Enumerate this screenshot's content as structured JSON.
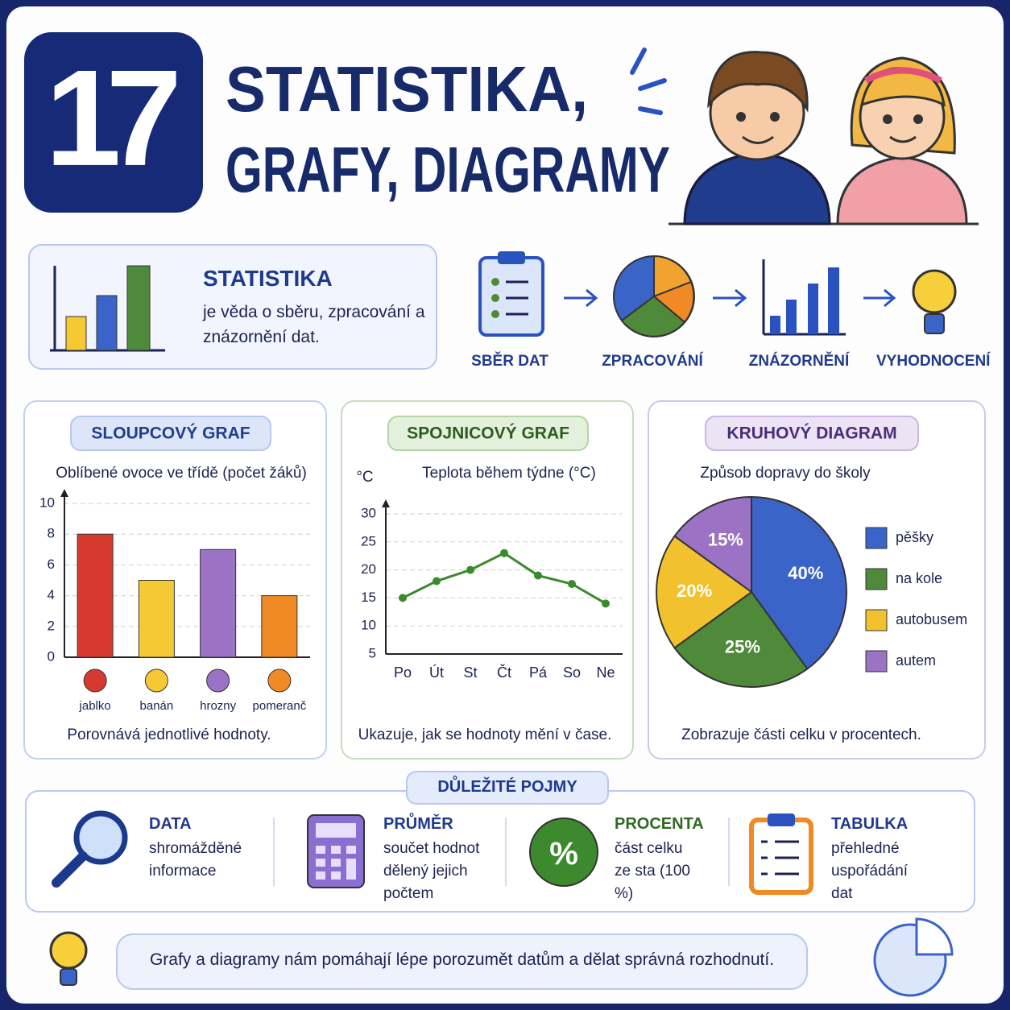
{
  "header": {
    "number": "17",
    "title_lines": [
      "STATISTIKA,",
      "GRAFY, DIAGRAMY"
    ]
  },
  "intro": {
    "title": "STATISTIKA",
    "text": "je věda o sběru, zpracování a znázornění dat."
  },
  "process": {
    "steps": [
      "SBĚR DAT",
      "ZPRACOVÁNÍ",
      "ZNÁZORNĚNÍ",
      "VYHODNOCENÍ"
    ]
  },
  "chart_data": [
    {
      "type": "bar",
      "badge": "SLOUPCOVÝ GRAF",
      "title": "Oblíbené ovoce ve třídě (počet žáků)",
      "categories": [
        "jablko",
        "banán",
        "hrozny",
        "pomeranč"
      ],
      "values": [
        8,
        5,
        7,
        4
      ],
      "colors": [
        "#d63a2f",
        "#f4c934",
        "#9b72c4",
        "#f08a24"
      ],
      "ylim": [
        0,
        10
      ],
      "yticks": [
        0,
        2,
        4,
        6,
        8,
        10
      ],
      "grid": true,
      "caption": "Porovnává jednotlivé hodnoty."
    },
    {
      "type": "line",
      "badge": "SPOJNICOVÝ GRAF",
      "title": "Teplota během týdne (°C)",
      "y_label": "°C",
      "categories": [
        "Po",
        "Út",
        "St",
        "Čt",
        "Pá",
        "So",
        "Ne"
      ],
      "values": [
        15,
        18,
        20,
        23,
        19,
        17.5,
        14
      ],
      "color": "#3d8a2e",
      "ylim": [
        5,
        30
      ],
      "yticks": [
        5,
        10,
        15,
        20,
        25,
        30
      ],
      "grid": true,
      "caption": "Ukazuje, jak se hodnoty mění v čase."
    },
    {
      "type": "pie",
      "badge": "KRUHOVÝ DIAGRAM",
      "title": "Způsob dopravy do školy",
      "categories": [
        "pěšky",
        "na kole",
        "autobusem",
        "autem"
      ],
      "values": [
        40,
        25,
        20,
        15
      ],
      "value_labels": [
        "40%",
        "25%",
        "20%",
        "15%"
      ],
      "colors": [
        "#3a64c8",
        "#4f8a3a",
        "#f2c12e",
        "#9b72c4"
      ],
      "legend": "right",
      "caption": "Zobrazuje části celku v procentech."
    }
  ],
  "terms": {
    "heading": "DŮLEŽITÉ POJMY",
    "items": [
      {
        "title": "DATA",
        "text": "shromážděné informace"
      },
      {
        "title": "PRŮMĚR",
        "text": "součet hodnot dělený jejich počtem"
      },
      {
        "title": "PROCENTA",
        "text": "část celku ze sta (100 %)",
        "icon_text": "%"
      },
      {
        "title": "TABULKA",
        "text": "přehledné uspořádání dat"
      }
    ]
  },
  "footer": {
    "text": "Grafy a diagramy nám pomáhají lépe porozumět datům a dělat správná rozhodnutí."
  }
}
